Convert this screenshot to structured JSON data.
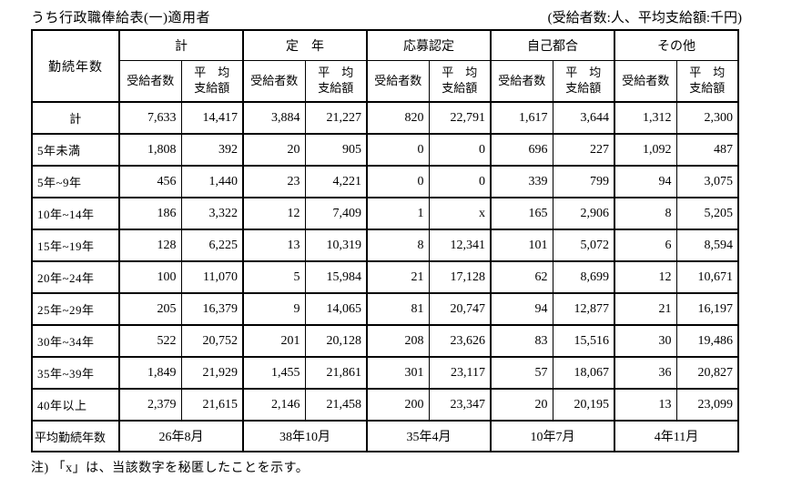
{
  "page": {
    "title": "うち行政職俸給表(一)適用者",
    "units_note": "(受給者数:人、平均支給額:千円)",
    "footnote": "注) 「x」は、当該数字を秘匿したことを示す。"
  },
  "table": {
    "corner_header": "勤続年数",
    "groups": [
      {
        "label": "計"
      },
      {
        "label": "定　年"
      },
      {
        "label": "応募認定"
      },
      {
        "label": "自己都合"
      },
      {
        "label": "その他"
      }
    ],
    "sub_headers": [
      {
        "label": "受給者数"
      },
      {
        "label": "平　均\n支給額"
      }
    ],
    "rows": [
      {
        "label": "計",
        "center": true,
        "values": [
          "7,633",
          "14,417",
          "3,884",
          "21,227",
          "820",
          "22,791",
          "1,617",
          "3,644",
          "1,312",
          "2,300"
        ]
      },
      {
        "label": "5年未満",
        "values": [
          "1,808",
          "392",
          "20",
          "905",
          "0",
          "0",
          "696",
          "227",
          "1,092",
          "487"
        ]
      },
      {
        "label": "5年~9年",
        "values": [
          "456",
          "1,440",
          "23",
          "4,221",
          "0",
          "0",
          "339",
          "799",
          "94",
          "3,075"
        ]
      },
      {
        "label": "10年~14年",
        "values": [
          "186",
          "3,322",
          "12",
          "7,409",
          "1",
          "x",
          "165",
          "2,906",
          "8",
          "5,205"
        ]
      },
      {
        "label": "15年~19年",
        "values": [
          "128",
          "6,225",
          "13",
          "10,319",
          "8",
          "12,341",
          "101",
          "5,072",
          "6",
          "8,594"
        ]
      },
      {
        "label": "20年~24年",
        "values": [
          "100",
          "11,070",
          "5",
          "15,984",
          "21",
          "17,128",
          "62",
          "8,699",
          "12",
          "10,671"
        ]
      },
      {
        "label": "25年~29年",
        "values": [
          "205",
          "16,379",
          "9",
          "14,065",
          "81",
          "20,747",
          "94",
          "12,877",
          "21",
          "16,197"
        ]
      },
      {
        "label": "30年~34年",
        "values": [
          "522",
          "20,752",
          "201",
          "20,128",
          "208",
          "23,626",
          "83",
          "15,516",
          "30",
          "19,486"
        ]
      },
      {
        "label": "35年~39年",
        "values": [
          "1,849",
          "21,929",
          "1,455",
          "21,861",
          "301",
          "23,117",
          "57",
          "18,067",
          "36",
          "20,827"
        ]
      },
      {
        "label": "40年以上",
        "values": [
          "2,379",
          "21,615",
          "2,146",
          "21,458",
          "200",
          "23,347",
          "20",
          "20,195",
          "13",
          "23,099"
        ]
      }
    ],
    "average_row": {
      "label": "平均勤続年数",
      "values": [
        "26年8月",
        "38年10月",
        "35年4月",
        "10年7月",
        "4年11月"
      ]
    }
  }
}
